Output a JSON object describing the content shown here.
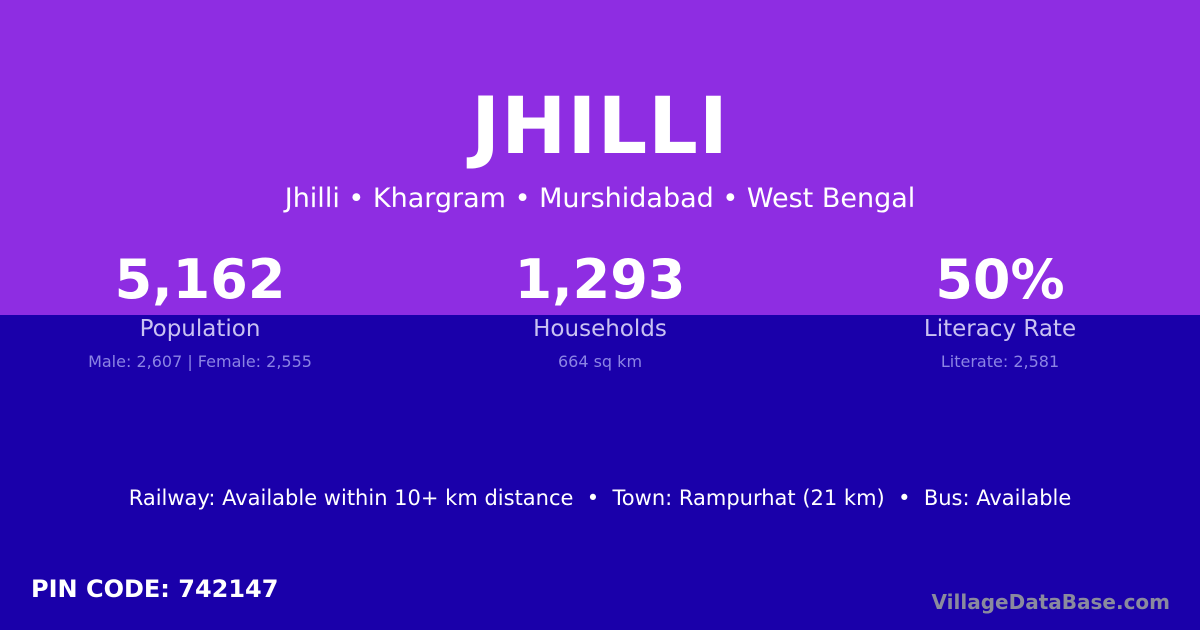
{
  "colors": {
    "top": "#8e2de2",
    "bottom": "#1a00aa"
  },
  "title": "JHILLI",
  "subtitle": "Jhilli • Khargram • Murshidabad • West Bengal",
  "stats": [
    {
      "value": "5,162",
      "label": "Population",
      "detail": "Male: 2,607 | Female: 2,555"
    },
    {
      "value": "1,293",
      "label": "Households",
      "detail": "664 sq km"
    },
    {
      "value": "50%",
      "label": "Literacy Rate",
      "detail": "Literate: 2,581"
    }
  ],
  "facilities": "Railway: Available within 10+ km distance  •  Town: Rampurhat (21 km)  •  Bus: Available",
  "pin": "PIN CODE: 742147",
  "brand": "VillageDataBase.com"
}
